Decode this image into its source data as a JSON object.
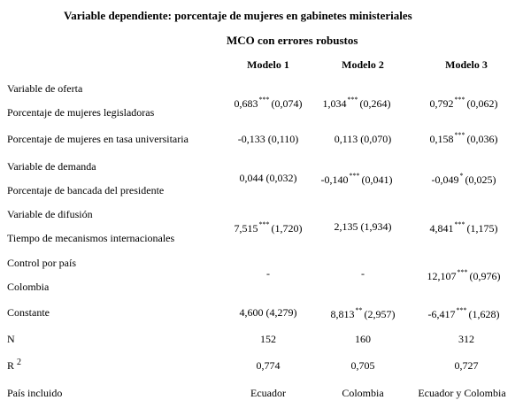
{
  "title": "Variable dependiente: porcentaje de mujeres en gabinetes ministeriales",
  "subtitle": "MCO con errores robustos",
  "columns": [
    "Modelo 1",
    "Modelo 2",
    "Modelo 3"
  ],
  "rows": {
    "oferta": {
      "group": "Variable de oferta",
      "label": "Porcentaje de mujeres legisladoras",
      "cells": [
        {
          "coef": "0,683",
          "stars": "***",
          "se": "(0,074)"
        },
        {
          "coef": "1,034",
          "stars": "***",
          "se": "(0,264)"
        },
        {
          "coef": "0,792",
          "stars": "***",
          "se": "(0,062)"
        }
      ]
    },
    "universitaria": {
      "label": "Porcentaje de mujeres en tasa universitaria",
      "cells": [
        {
          "coef": "-0,133",
          "stars": "",
          "se": "(0,110)"
        },
        {
          "coef": "0,113",
          "stars": "",
          "se": "(0,070)"
        },
        {
          "coef": "0,158",
          "stars": "***",
          "se": "(0,036)"
        }
      ]
    },
    "demanda": {
      "group": "Variable de demanda",
      "label": "Porcentaje de bancada del presidente",
      "cells": [
        {
          "coef": "0,044",
          "stars": "",
          "se": "(0,032)"
        },
        {
          "coef": "-0,140",
          "stars": "***",
          "se": "(0,041)"
        },
        {
          "coef": "-0,049",
          "stars": "*",
          "se": "(0,025)"
        }
      ]
    },
    "difusion": {
      "group": "Variable de difusión",
      "label": "Tiempo de mecanismos internacionales",
      "cells": [
        {
          "coef": "7,515",
          "stars": "***",
          "se": "(1,720)"
        },
        {
          "coef": "2,135",
          "stars": "",
          "se": "(1,934)"
        },
        {
          "coef": "4,841",
          "stars": "***",
          "se": "(1,175)"
        }
      ]
    },
    "pais": {
      "group": "Control por país",
      "label": "Colombia",
      "cells": [
        {
          "text": "-"
        },
        {
          "text": "-"
        },
        {
          "coef": "12,107",
          "stars": "***",
          "se": "(0,976)"
        }
      ]
    },
    "constante": {
      "label": "Constante",
      "cells": [
        {
          "coef": "4,600",
          "stars": "",
          "se": "(4,279)"
        },
        {
          "coef": "8,813",
          "stars": "**",
          "se": "(2,957)"
        },
        {
          "coef": "-6,417",
          "stars": "***",
          "se": "(1,628)"
        }
      ]
    },
    "n": {
      "label": "N",
      "cells": [
        "152",
        "160",
        "312"
      ]
    },
    "r2": {
      "label": "R",
      "label_sup": "2",
      "cells": [
        "0,774",
        "0,705",
        "0,727"
      ]
    },
    "incluido": {
      "label": "País incluido",
      "cells": [
        "Ecuador",
        "Colombia",
        "Ecuador y Colombia"
      ]
    }
  }
}
